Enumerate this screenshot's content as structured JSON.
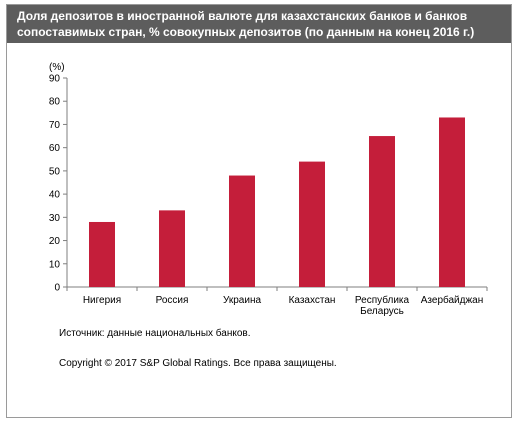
{
  "colors": {
    "title_bg": "#5d5d5d",
    "bar": "#c41e3a",
    "axis": "#7f7f7f"
  },
  "source_note": "Источник: данные национальных банков.",
  "copyright_note": "Copyright © 2017 S&P Global Ratings. Все права защищены.",
  "chart_data": {
    "type": "bar",
    "title_lines": [
      "Доля депозитов в иностранной валюте для казахстанских банков и банков",
      "сопоставимых стран, % совокупных депозитов (по данным на конец 2016 г.)"
    ],
    "ylabel": "(%)",
    "xlabel": "",
    "ylim": [
      0,
      90
    ],
    "yticks": [
      0,
      10,
      20,
      30,
      40,
      50,
      60,
      70,
      80,
      90
    ],
    "grid": false,
    "legend": "none",
    "categories": [
      [
        "Нигерия"
      ],
      [
        "Россия"
      ],
      [
        "Украина"
      ],
      [
        "Казахстан"
      ],
      [
        "Республика",
        "Беларусь"
      ],
      [
        "Азербайджан"
      ]
    ],
    "values": [
      28,
      33,
      48,
      54,
      65,
      73
    ]
  }
}
